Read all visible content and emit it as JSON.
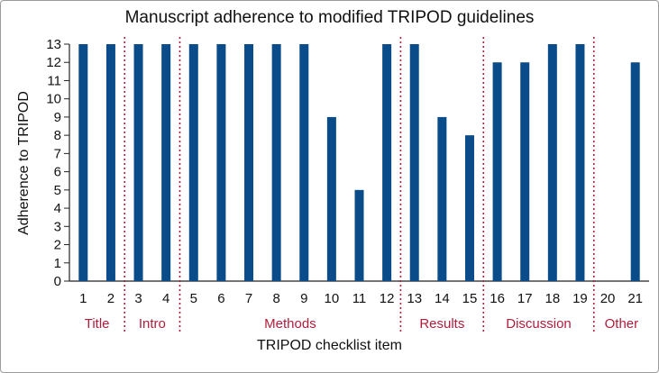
{
  "chart_data": {
    "type": "bar",
    "title": "Manuscript adherence to modified TRIPOD guidelines",
    "xlabel": "TRIPOD checklist item",
    "ylabel": "Adherence to TRIPOD",
    "ylim": [
      0,
      13
    ],
    "yticks": [
      "0",
      "1",
      "2",
      "3",
      "4",
      "5",
      "6",
      "7",
      "8",
      "9",
      "10",
      "11",
      "12",
      "13"
    ],
    "categories": [
      "1",
      "2",
      "3",
      "4",
      "5",
      "6",
      "7",
      "8",
      "9",
      "10",
      "11",
      "12",
      "13",
      "14",
      "15",
      "16",
      "17",
      "18",
      "19",
      "20",
      "21"
    ],
    "values": [
      13,
      13,
      13,
      13,
      13,
      13,
      13,
      13,
      13,
      9,
      5,
      13,
      13,
      9,
      8,
      12,
      12,
      13,
      13,
      0,
      12
    ],
    "groups": [
      {
        "label": "Title",
        "items": [
          "1",
          "2"
        ]
      },
      {
        "label": "Intro",
        "items": [
          "3",
          "4"
        ]
      },
      {
        "label": "Methods",
        "items": [
          "5",
          "6",
          "7",
          "8",
          "9",
          "10",
          "11",
          "12"
        ]
      },
      {
        "label": "Results",
        "items": [
          "13",
          "14",
          "15"
        ]
      },
      {
        "label": "Discussion",
        "items": [
          "16",
          "17",
          "18",
          "19"
        ]
      },
      {
        "label": "Other",
        "items": [
          "20",
          "21"
        ]
      }
    ],
    "bar_color": "#0a4c8a",
    "group_color": "#b01e3c",
    "grid": false,
    "legend": "none"
  }
}
